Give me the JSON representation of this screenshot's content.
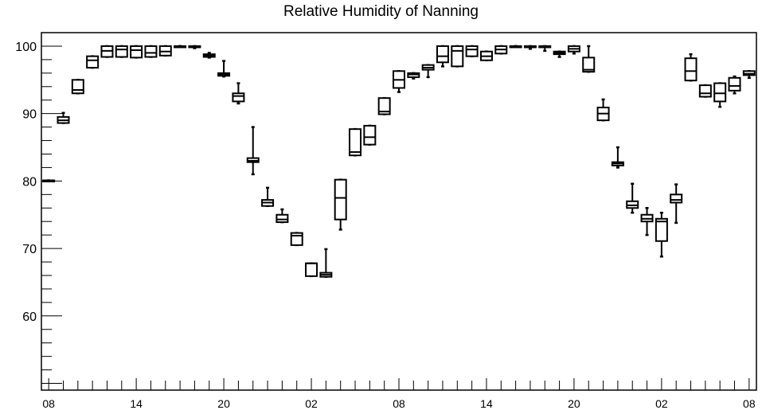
{
  "chart_data": {
    "type": "box",
    "title": "Relative Humidity of Nanning",
    "xlabel": "",
    "ylabel": "",
    "ylim": [
      49,
      102
    ],
    "yticks": [
      60,
      70,
      80,
      90,
      100
    ],
    "xlim": [
      -0.5,
      48.5
    ],
    "xticks": [
      {
        "pos": 0,
        "label": "08"
      },
      {
        "pos": 6,
        "label": "14"
      },
      {
        "pos": 12,
        "label": "20"
      },
      {
        "pos": 18,
        "label": "02"
      },
      {
        "pos": 24,
        "label": "08"
      },
      {
        "pos": 30,
        "label": "14"
      },
      {
        "pos": 36,
        "label": "20"
      },
      {
        "pos": 42,
        "label": "02"
      },
      {
        "pos": 48,
        "label": "08"
      }
    ],
    "grid": false,
    "boxes": [
      {
        "x": 0,
        "min": 80.0,
        "q1": 80.0,
        "median": 80.0,
        "q3": 80.1,
        "max": 80.1
      },
      {
        "x": 1,
        "min": 88.6,
        "q1": 88.6,
        "median": 89.0,
        "q3": 89.5,
        "max": 90.1
      },
      {
        "x": 2,
        "min": 93.0,
        "q1": 93.0,
        "median": 93.5,
        "q3": 95.0,
        "max": 95.0
      },
      {
        "x": 3,
        "min": 96.8,
        "q1": 96.8,
        "median": 97.9,
        "q3": 98.5,
        "max": 98.5
      },
      {
        "x": 4,
        "min": 98.4,
        "q1": 98.4,
        "median": 99.3,
        "q3": 100.0,
        "max": 100.0
      },
      {
        "x": 5,
        "min": 98.4,
        "q1": 98.4,
        "median": 99.5,
        "q3": 100.0,
        "max": 100.0
      },
      {
        "x": 6,
        "min": 98.3,
        "q1": 98.3,
        "median": 99.4,
        "q3": 100.0,
        "max": 100.0
      },
      {
        "x": 7,
        "min": 98.4,
        "q1": 98.4,
        "median": 99.0,
        "q3": 100.0,
        "max": 100.0
      },
      {
        "x": 8,
        "min": 98.6,
        "q1": 98.6,
        "median": 99.2,
        "q3": 100.0,
        "max": 100.0
      },
      {
        "x": 9,
        "min": 100.0,
        "q1": 100.0,
        "median": 100.0,
        "q3": 100.0,
        "max": 100.0
      },
      {
        "x": 10,
        "min": 99.7,
        "q1": 100.0,
        "median": 100.0,
        "q3": 100.0,
        "max": 100.0
      },
      {
        "x": 11,
        "min": 98.3,
        "q1": 98.4,
        "median": 98.6,
        "q3": 98.8,
        "max": 99.0
      },
      {
        "x": 12,
        "min": 95.5,
        "q1": 95.6,
        "median": 95.8,
        "q3": 96.0,
        "max": 97.8
      },
      {
        "x": 13,
        "min": 91.5,
        "q1": 91.8,
        "median": 92.6,
        "q3": 93.0,
        "max": 94.5
      },
      {
        "x": 14,
        "min": 81.0,
        "q1": 82.8,
        "median": 83.0,
        "q3": 83.4,
        "max": 88.0
      },
      {
        "x": 15,
        "min": 76.3,
        "q1": 76.3,
        "median": 76.8,
        "q3": 77.2,
        "max": 79.0
      },
      {
        "x": 16,
        "min": 73.9,
        "q1": 73.9,
        "median": 74.3,
        "q3": 75.0,
        "max": 75.8
      },
      {
        "x": 17,
        "min": 70.5,
        "q1": 70.5,
        "median": 71.9,
        "q3": 72.3,
        "max": 72.3
      },
      {
        "x": 18,
        "min": 65.9,
        "q1": 65.9,
        "median": 67.8,
        "q3": 67.8,
        "max": 67.8
      },
      {
        "x": 19,
        "min": 65.8,
        "q1": 65.8,
        "median": 66.1,
        "q3": 66.4,
        "max": 69.9
      },
      {
        "x": 20,
        "min": 72.8,
        "q1": 74.3,
        "median": 77.5,
        "q3": 80.2,
        "max": 80.2
      },
      {
        "x": 21,
        "min": 83.8,
        "q1": 83.8,
        "median": 84.3,
        "q3": 87.7,
        "max": 87.7
      },
      {
        "x": 22,
        "min": 85.4,
        "q1": 85.4,
        "median": 86.5,
        "q3": 88.2,
        "max": 88.2
      },
      {
        "x": 23,
        "min": 89.9,
        "q1": 89.9,
        "median": 90.3,
        "q3": 92.3,
        "max": 92.3
      },
      {
        "x": 24,
        "min": 93.2,
        "q1": 93.8,
        "median": 95.0,
        "q3": 96.3,
        "max": 96.3
      },
      {
        "x": 25,
        "min": 95.2,
        "q1": 95.4,
        "median": 95.8,
        "q3": 96.0,
        "max": 96.0
      },
      {
        "x": 26,
        "min": 95.4,
        "q1": 96.5,
        "median": 96.8,
        "q3": 97.2,
        "max": 97.2
      },
      {
        "x": 27,
        "min": 97.0,
        "q1": 97.6,
        "median": 98.5,
        "q3": 100.0,
        "max": 100.0
      },
      {
        "x": 28,
        "min": 97.0,
        "q1": 97.0,
        "median": 99.3,
        "q3": 100.0,
        "max": 100.0
      },
      {
        "x": 29,
        "min": 98.5,
        "q1": 98.5,
        "median": 99.5,
        "q3": 100.0,
        "max": 100.0
      },
      {
        "x": 30,
        "min": 97.9,
        "q1": 97.9,
        "median": 98.5,
        "q3": 99.2,
        "max": 99.2
      },
      {
        "x": 31,
        "min": 98.9,
        "q1": 98.9,
        "median": 99.5,
        "q3": 100.0,
        "max": 100.0
      },
      {
        "x": 32,
        "min": 100.0,
        "q1": 100.0,
        "median": 100.0,
        "q3": 100.0,
        "max": 100.0
      },
      {
        "x": 33,
        "min": 99.6,
        "q1": 100.0,
        "median": 100.0,
        "q3": 100.0,
        "max": 100.0
      },
      {
        "x": 34,
        "min": 99.3,
        "q1": 100.0,
        "median": 100.0,
        "q3": 100.0,
        "max": 100.0
      },
      {
        "x": 35,
        "min": 98.4,
        "q1": 98.8,
        "median": 99.0,
        "q3": 99.2,
        "max": 99.2
      },
      {
        "x": 36,
        "min": 98.9,
        "q1": 99.2,
        "median": 99.6,
        "q3": 100.0,
        "max": 100.0
      },
      {
        "x": 37,
        "min": 96.2,
        "q1": 96.2,
        "median": 96.5,
        "q3": 98.3,
        "max": 100.0
      },
      {
        "x": 38,
        "min": 89.0,
        "q1": 89.0,
        "median": 90.0,
        "q3": 90.9,
        "max": 92.1
      },
      {
        "x": 39,
        "min": 82.0,
        "q1": 82.3,
        "median": 82.6,
        "q3": 82.8,
        "max": 85.0
      },
      {
        "x": 40,
        "min": 75.3,
        "q1": 76.0,
        "median": 76.4,
        "q3": 77.0,
        "max": 79.6
      },
      {
        "x": 41,
        "min": 72.0,
        "q1": 74.0,
        "median": 74.4,
        "q3": 75.0,
        "max": 76.0
      },
      {
        "x": 42,
        "min": 68.8,
        "q1": 71.1,
        "median": 74.0,
        "q3": 74.4,
        "max": 75.3
      },
      {
        "x": 43,
        "min": 73.8,
        "q1": 76.8,
        "median": 77.2,
        "q3": 78.0,
        "max": 79.5
      },
      {
        "x": 44,
        "min": 94.9,
        "q1": 94.9,
        "median": 96.3,
        "q3": 98.2,
        "max": 98.8
      },
      {
        "x": 45,
        "min": 92.5,
        "q1": 92.5,
        "median": 93.0,
        "q3": 94.2,
        "max": 94.2
      },
      {
        "x": 46,
        "min": 91.0,
        "q1": 91.8,
        "median": 93.0,
        "q3": 94.5,
        "max": 94.5
      },
      {
        "x": 47,
        "min": 93.0,
        "q1": 93.4,
        "median": 94.1,
        "q3": 95.3,
        "max": 95.5
      },
      {
        "x": 48,
        "min": 95.3,
        "q1": 95.7,
        "median": 95.9,
        "q3": 96.3,
        "max": 96.3
      }
    ]
  }
}
